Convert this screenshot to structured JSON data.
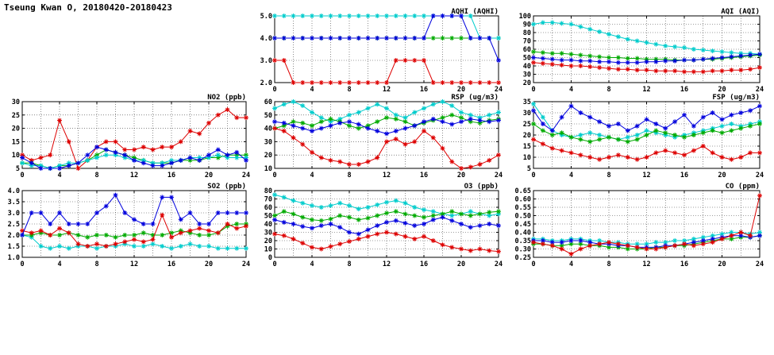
{
  "title": "Tseung Kwan O, 20180420-20180423",
  "colors": {
    "red": "#dd0000",
    "green": "#00aa00",
    "blue": "#0000dd",
    "cyan": "#00cccc"
  },
  "hours": [
    0,
    1,
    2,
    3,
    4,
    5,
    6,
    7,
    8,
    9,
    10,
    11,
    12,
    13,
    14,
    15,
    16,
    17,
    18,
    19,
    20,
    21,
    22,
    23,
    24
  ],
  "chart_data": [
    {
      "type": "line",
      "title": "AQHI (AQHI)",
      "xlim": [
        0,
        24
      ],
      "xticks": 4,
      "xgrid": 2,
      "ylim": [
        2,
        5
      ],
      "ytick": 1,
      "ydec": 1,
      "series": [
        {
          "name": "red",
          "color": "#dd0000",
          "values": [
            3,
            3,
            2,
            2,
            2,
            2,
            2,
            2,
            2,
            2,
            2,
            2,
            2,
            3,
            3,
            3,
            3,
            2,
            2,
            2,
            2,
            2,
            2,
            2,
            2
          ]
        },
        {
          "name": "green",
          "color": "#00aa00",
          "values": [
            4,
            4,
            4,
            4,
            4,
            4,
            4,
            4,
            4,
            4,
            4,
            4,
            4,
            4,
            4,
            4,
            4,
            4,
            4,
            4,
            4,
            4,
            4,
            4,
            4
          ]
        },
        {
          "name": "cyan",
          "color": "#00cccc",
          "values": [
            5,
            5,
            5,
            5,
            5,
            5,
            5,
            5,
            5,
            5,
            5,
            5,
            5,
            5,
            5,
            5,
            5,
            5,
            5,
            5,
            5,
            5,
            4,
            4,
            4
          ]
        },
        {
          "name": "blue",
          "color": "#0000dd",
          "values": [
            4,
            4,
            4,
            4,
            4,
            4,
            4,
            4,
            4,
            4,
            4,
            4,
            4,
            4,
            4,
            4,
            4,
            5,
            5,
            5,
            5,
            4,
            4,
            4,
            3
          ]
        }
      ]
    },
    {
      "type": "line",
      "title": "AQI (AQI)",
      "xlim": [
        0,
        24
      ],
      "xticks": 4,
      "xgrid": 2,
      "ylim": [
        20,
        100
      ],
      "ytick": 10,
      "ydec": 0,
      "series": [
        {
          "name": "cyan",
          "color": "#00cccc",
          "values": [
            90,
            92,
            92,
            91,
            90,
            87,
            84,
            81,
            78,
            75,
            72,
            70,
            68,
            66,
            64,
            63,
            62,
            60,
            59,
            58,
            57,
            56,
            55,
            55,
            54
          ]
        },
        {
          "name": "green",
          "color": "#00aa00",
          "values": [
            57,
            56,
            55,
            55,
            54,
            53,
            52,
            51,
            50,
            50,
            49,
            49,
            48,
            48,
            48,
            47,
            47,
            47,
            48,
            48,
            49,
            50,
            51,
            52,
            53
          ]
        },
        {
          "name": "blue",
          "color": "#0000dd",
          "values": [
            50,
            49,
            48,
            47,
            47,
            46,
            46,
            45,
            45,
            44,
            44,
            44,
            45,
            45,
            46,
            46,
            47,
            47,
            48,
            49,
            50,
            51,
            52,
            53,
            54
          ]
        },
        {
          "name": "red",
          "color": "#dd0000",
          "values": [
            44,
            43,
            42,
            41,
            40,
            40,
            39,
            38,
            37,
            36,
            36,
            35,
            35,
            34,
            34,
            34,
            33,
            33,
            33,
            34,
            34,
            35,
            35,
            36,
            38
          ]
        }
      ]
    },
    {
      "type": "line",
      "title": "NO2 (ppb)",
      "xlim": [
        0,
        24
      ],
      "xticks": 4,
      "xgrid": 2,
      "ylim": [
        5,
        30
      ],
      "ytick": 5,
      "ydec": 0,
      "series": [
        {
          "name": "red",
          "color": "#dd0000",
          "values": [
            10,
            8,
            9,
            10,
            23,
            15,
            5,
            8,
            13,
            15,
            15,
            12,
            12,
            13,
            12,
            13,
            13,
            15,
            19,
            18,
            22,
            25,
            27,
            24,
            24
          ]
        },
        {
          "name": "green",
          "color": "#00aa00",
          "values": [
            7,
            7,
            6,
            5,
            6,
            6,
            7,
            8,
            10,
            12,
            11,
            10,
            9,
            8,
            7,
            7,
            7,
            8,
            8,
            8,
            9,
            9,
            10,
            10,
            10
          ]
        },
        {
          "name": "cyan",
          "color": "#00cccc",
          "values": [
            7,
            6,
            6,
            5,
            6,
            7,
            7,
            8,
            9,
            10,
            10,
            9,
            8,
            8,
            7,
            7,
            8,
            8,
            9,
            9,
            9,
            10,
            9,
            9,
            9
          ]
        },
        {
          "name": "blue",
          "color": "#0000dd",
          "values": [
            9,
            7,
            5,
            5,
            5,
            6,
            7,
            10,
            13,
            12,
            11,
            10,
            8,
            7,
            6,
            6,
            7,
            8,
            9,
            8,
            10,
            12,
            10,
            11,
            8
          ]
        }
      ]
    },
    {
      "type": "line",
      "title": "RSP (ug/m3)",
      "xlim": [
        0,
        24
      ],
      "xticks": 4,
      "xgrid": 2,
      "ylim": [
        10,
        60
      ],
      "ytick": 10,
      "ydec": 0,
      "series": [
        {
          "name": "cyan",
          "color": "#00cccc",
          "values": [
            55,
            58,
            60,
            57,
            52,
            48,
            45,
            47,
            50,
            52,
            55,
            58,
            55,
            50,
            48,
            52,
            55,
            58,
            60,
            57,
            52,
            50,
            48,
            50,
            52
          ]
        },
        {
          "name": "green",
          "color": "#00aa00",
          "values": [
            40,
            42,
            45,
            44,
            42,
            45,
            47,
            45,
            42,
            40,
            42,
            45,
            48,
            47,
            45,
            42,
            44,
            46,
            48,
            50,
            48,
            45,
            44,
            46,
            47
          ]
        },
        {
          "name": "blue",
          "color": "#0000dd",
          "values": [
            45,
            44,
            42,
            40,
            38,
            40,
            42,
            44,
            45,
            43,
            40,
            38,
            36,
            38,
            40,
            42,
            45,
            47,
            45,
            43,
            45,
            47,
            46,
            45,
            46
          ]
        },
        {
          "name": "red",
          "color": "#dd0000",
          "values": [
            40,
            38,
            33,
            28,
            22,
            18,
            16,
            15,
            13,
            13,
            15,
            18,
            30,
            32,
            28,
            30,
            38,
            33,
            25,
            15,
            10,
            11,
            13,
            16,
            20
          ]
        }
      ]
    },
    {
      "type": "line",
      "title": "FSP (ug/m3)",
      "xlim": [
        0,
        24
      ],
      "xticks": 4,
      "xgrid": 2,
      "ylim": [
        5,
        35
      ],
      "ytick": 5,
      "ydec": 0,
      "series": [
        {
          "name": "cyan",
          "color": "#00cccc",
          "values": [
            34,
            28,
            22,
            20,
            19,
            20,
            21,
            20,
            19,
            18,
            19,
            20,
            22,
            21,
            20,
            19,
            20,
            21,
            22,
            23,
            24,
            25,
            24,
            25,
            26
          ]
        },
        {
          "name": "green",
          "color": "#00aa00",
          "values": [
            25,
            22,
            20,
            21,
            19,
            18,
            17,
            18,
            19,
            18,
            17,
            18,
            20,
            22,
            21,
            20,
            19,
            20,
            21,
            22,
            21,
            22,
            23,
            24,
            25
          ]
        },
        {
          "name": "blue",
          "color": "#0000dd",
          "values": [
            31,
            25,
            22,
            28,
            33,
            30,
            28,
            26,
            24,
            25,
            22,
            24,
            27,
            25,
            23,
            26,
            29,
            24,
            28,
            30,
            27,
            29,
            30,
            31,
            33
          ]
        },
        {
          "name": "red",
          "color": "#dd0000",
          "values": [
            18,
            16,
            14,
            13,
            12,
            11,
            10,
            9,
            10,
            11,
            10,
            9,
            10,
            12,
            13,
            12,
            11,
            13,
            15,
            12,
            10,
            9,
            10,
            12,
            12
          ]
        }
      ]
    },
    {
      "type": "line",
      "title": "SO2 (ppb)",
      "xlim": [
        0,
        24
      ],
      "xticks": 4,
      "xgrid": 2,
      "ylim": [
        1,
        4
      ],
      "ytick": 0.5,
      "ydec": 1,
      "series": [
        {
          "name": "cyan",
          "color": "#00cccc",
          "values": [
            2.0,
            1.9,
            1.5,
            1.4,
            1.5,
            1.4,
            1.5,
            1.5,
            1.4,
            1.5,
            1.5,
            1.6,
            1.5,
            1.5,
            1.6,
            1.5,
            1.4,
            1.5,
            1.6,
            1.5,
            1.5,
            1.4,
            1.4,
            1.4,
            1.4
          ]
        },
        {
          "name": "green",
          "color": "#00aa00",
          "values": [
            2.0,
            2.0,
            2.1,
            2.0,
            2.0,
            2.1,
            2.0,
            1.9,
            2.0,
            2.0,
            1.9,
            2.0,
            2.0,
            2.1,
            2.0,
            2.0,
            2.1,
            2.2,
            2.1,
            2.0,
            2.0,
            2.1,
            2.4,
            2.5,
            2.5
          ]
        },
        {
          "name": "red",
          "color": "#dd0000",
          "values": [
            2.2,
            2.1,
            2.2,
            2.0,
            2.3,
            2.1,
            1.6,
            1.5,
            1.6,
            1.5,
            1.6,
            1.7,
            1.8,
            1.7,
            1.8,
            2.9,
            1.9,
            2.1,
            2.2,
            2.3,
            2.2,
            2.1,
            2.5,
            2.3,
            2.4
          ]
        },
        {
          "name": "blue",
          "color": "#0000dd",
          "values": [
            2.0,
            3.0,
            3.0,
            2.5,
            3.0,
            2.5,
            2.5,
            2.5,
            3.0,
            3.3,
            3.8,
            3.0,
            2.7,
            2.5,
            2.5,
            3.7,
            3.7,
            2.7,
            3.0,
            2.5,
            2.5,
            3.0,
            3.0,
            3.0,
            3.0
          ]
        }
      ]
    },
    {
      "type": "line",
      "title": "O3 (ppb)",
      "xlim": [
        0,
        24
      ],
      "xticks": 4,
      "xgrid": 2,
      "ylim": [
        0,
        80
      ],
      "ytick": 10,
      "ydec": 0,
      "series": [
        {
          "name": "cyan",
          "color": "#00cccc",
          "values": [
            75,
            72,
            68,
            65,
            62,
            60,
            62,
            65,
            62,
            58,
            60,
            63,
            66,
            68,
            65,
            60,
            57,
            55,
            52,
            50,
            52,
            55,
            52,
            50,
            52
          ]
        },
        {
          "name": "green",
          "color": "#00aa00",
          "values": [
            50,
            55,
            52,
            48,
            45,
            44,
            46,
            50,
            48,
            45,
            47,
            50,
            53,
            55,
            52,
            50,
            48,
            50,
            52,
            55,
            52,
            50,
            52,
            54,
            55
          ]
        },
        {
          "name": "blue",
          "color": "#0000dd",
          "values": [
            45,
            42,
            40,
            37,
            35,
            38,
            40,
            36,
            30,
            28,
            33,
            38,
            42,
            44,
            41,
            38,
            40,
            45,
            48,
            44,
            40,
            36,
            38,
            40,
            38
          ]
        },
        {
          "name": "red",
          "color": "#dd0000",
          "values": [
            28,
            26,
            22,
            17,
            12,
            10,
            13,
            16,
            19,
            22,
            25,
            28,
            30,
            28,
            25,
            22,
            25,
            20,
            15,
            12,
            10,
            8,
            10,
            8,
            7
          ]
        }
      ]
    },
    {
      "type": "line",
      "title": "CO (ppm)",
      "xlim": [
        0,
        24
      ],
      "xticks": 4,
      "xgrid": 2,
      "ylim": [
        0.25,
        0.65
      ],
      "ytick": 0.05,
      "ydec": 2,
      "series": [
        {
          "name": "cyan",
          "color": "#00cccc",
          "values": [
            0.36,
            0.36,
            0.35,
            0.35,
            0.36,
            0.36,
            0.35,
            0.35,
            0.34,
            0.34,
            0.33,
            0.33,
            0.33,
            0.34,
            0.34,
            0.35,
            0.35,
            0.36,
            0.37,
            0.38,
            0.39,
            0.4,
            0.4,
            0.39,
            0.4
          ]
        },
        {
          "name": "green",
          "color": "#00aa00",
          "values": [
            0.33,
            0.33,
            0.32,
            0.32,
            0.33,
            0.33,
            0.32,
            0.32,
            0.31,
            0.31,
            0.3,
            0.3,
            0.3,
            0.31,
            0.31,
            0.32,
            0.32,
            0.33,
            0.34,
            0.35,
            0.36,
            0.36,
            0.37,
            0.37,
            0.38
          ]
        },
        {
          "name": "blue",
          "color": "#0000dd",
          "values": [
            0.35,
            0.35,
            0.34,
            0.34,
            0.35,
            0.35,
            0.34,
            0.33,
            0.33,
            0.32,
            0.32,
            0.31,
            0.31,
            0.31,
            0.32,
            0.32,
            0.33,
            0.34,
            0.35,
            0.36,
            0.37,
            0.38,
            0.38,
            0.37,
            0.38
          ]
        },
        {
          "name": "red",
          "color": "#dd0000",
          "values": [
            0.34,
            0.33,
            0.32,
            0.3,
            0.27,
            0.3,
            0.32,
            0.33,
            0.34,
            0.33,
            0.32,
            0.31,
            0.3,
            0.3,
            0.31,
            0.32,
            0.33,
            0.32,
            0.33,
            0.34,
            0.36,
            0.38,
            0.4,
            0.38,
            0.62
          ]
        }
      ]
    }
  ]
}
